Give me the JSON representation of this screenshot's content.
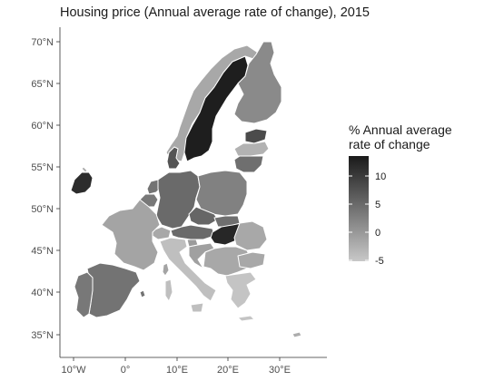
{
  "title": "Housing price (Annual average rate of change), 2015",
  "axes": {
    "y_ticks": [
      "70°N",
      "65°N",
      "60°N",
      "55°N",
      "50°N",
      "45°N",
      "40°N",
      "35°N"
    ],
    "x_ticks": [
      "10°W",
      "0°",
      "10°E",
      "20°E",
      "30°E"
    ]
  },
  "legend": {
    "title_line1": "% Annual average",
    "title_line2": "rate of change",
    "labels": [
      "10",
      "5",
      "0",
      "-5"
    ],
    "min": -6,
    "max": 13.5,
    "color_low": "#c8c8c8",
    "color_high": "#1a1a1a"
  },
  "colors": {
    "no_data": "#a8a8a8"
  },
  "regions": [
    {
      "name": "Sweden",
      "value": 13.0
    },
    {
      "name": "Hungary",
      "value": 12.0
    },
    {
      "name": "Ireland",
      "value": 11.5
    },
    {
      "name": "Denmark",
      "value": 7.0
    },
    {
      "name": "Estonia",
      "value": 8.0
    },
    {
      "name": "Lithuania",
      "value": 4.0
    },
    {
      "name": "Belgium",
      "value": 3.0
    },
    {
      "name": "Netherlands",
      "value": 3.5
    },
    {
      "name": "Germany",
      "value": 4.5
    },
    {
      "name": "Czechia",
      "value": 5.0
    },
    {
      "name": "Slovakia",
      "value": 4.0
    },
    {
      "name": "Austria",
      "value": 4.5
    },
    {
      "name": "Portugal",
      "value": 3.0
    },
    {
      "name": "Spain",
      "value": 3.5
    },
    {
      "name": "Poland",
      "value": 2.0
    },
    {
      "name": "Finland",
      "value": 1.0
    },
    {
      "name": "France",
      "value": -2.0
    },
    {
      "name": "Croatia",
      "value": -1.5
    },
    {
      "name": "Slovenia",
      "value": -1.0
    },
    {
      "name": "Latvia",
      "value": -3.5
    },
    {
      "name": "Cyprus",
      "value": -3.0
    },
    {
      "name": "Italy",
      "value": -5.0
    },
    {
      "name": "Greece",
      "value": -5.5
    }
  ]
}
